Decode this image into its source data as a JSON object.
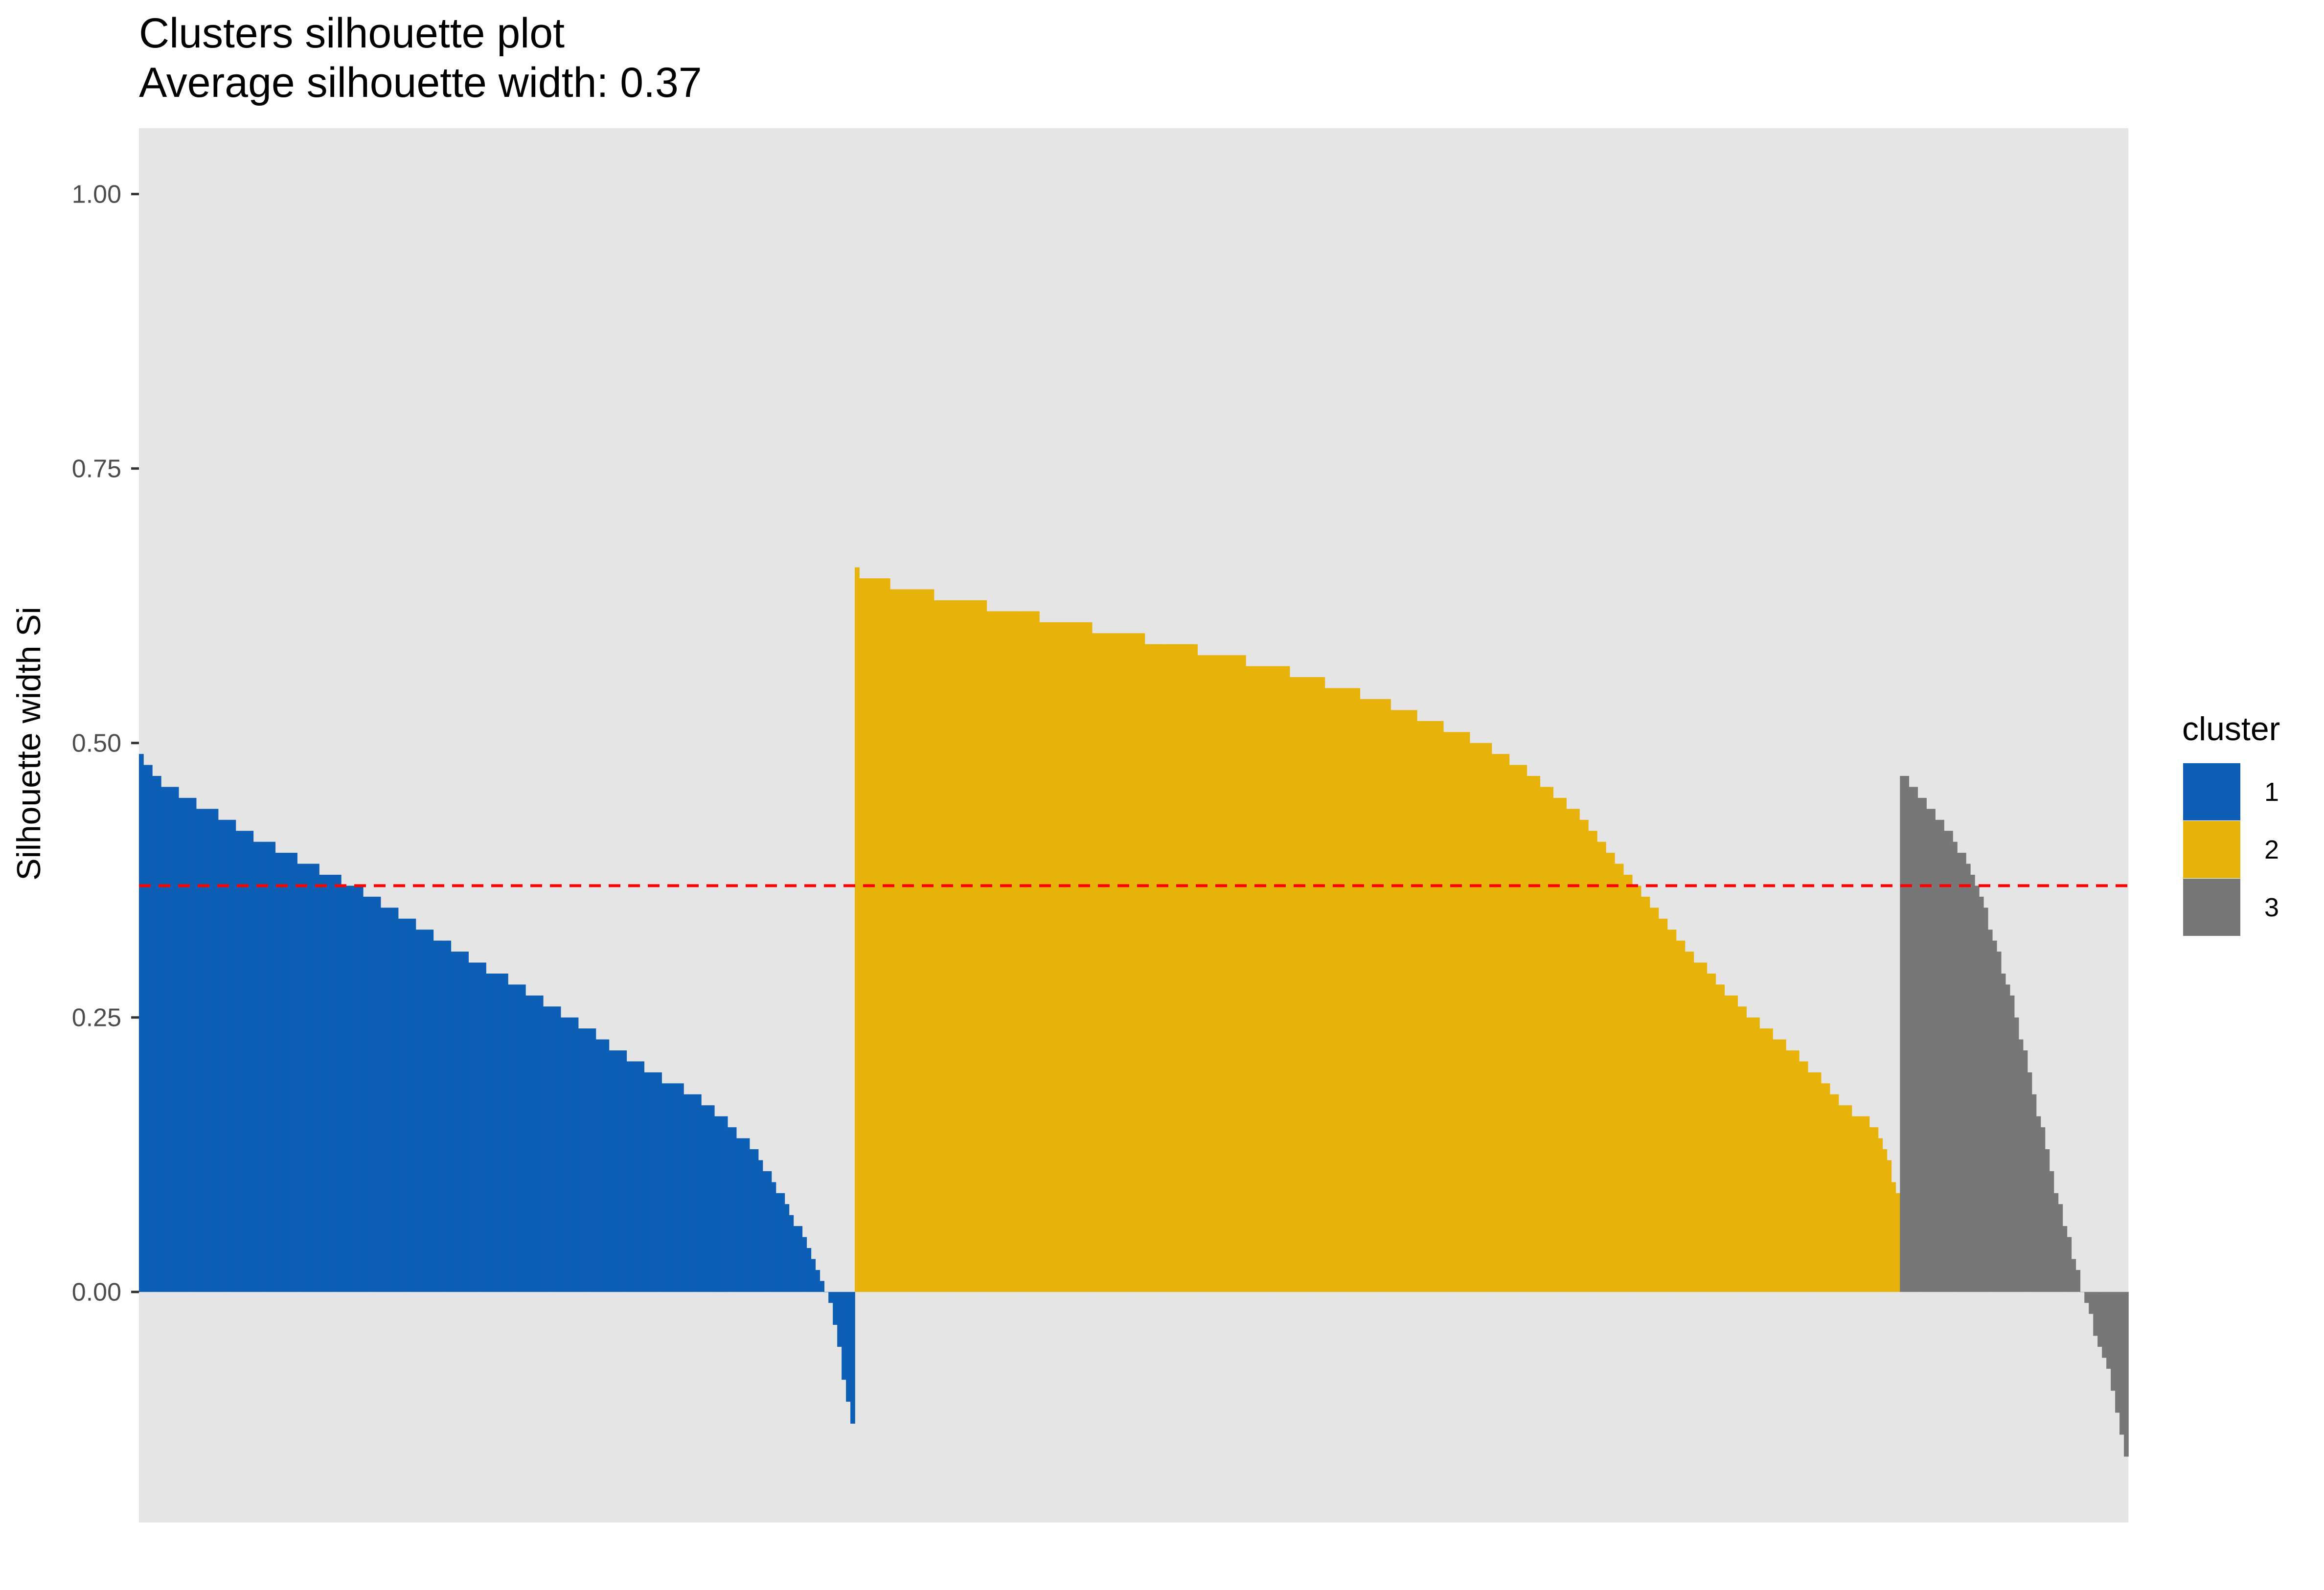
{
  "chart_data": {
    "type": "bar",
    "title": "Clusters silhouette plot",
    "subtitle": " Average silhouette width: 0.37",
    "xlabel": "",
    "ylabel": "Silhouette width Si",
    "ylim": [
      -0.21,
      1.06
    ],
    "yticks": [
      "0.00",
      "0.25",
      "0.50",
      "0.75",
      "1.00"
    ],
    "ytick_values": [
      0,
      0.25,
      0.5,
      0.75,
      1.0
    ],
    "grid": false,
    "background": "#e5e5e5",
    "average_line": {
      "value": 0.37,
      "color": "#ff0000",
      "style": "dashed"
    },
    "legend": {
      "title": "cluster",
      "position": "right"
    },
    "series": [
      {
        "name": "1",
        "color": "#0d5fb6",
        "count": 163,
        "profile": [
          [
            0,
            0.49
          ],
          [
            0.02,
            0.47
          ],
          [
            0.06,
            0.45
          ],
          [
            0.12,
            0.43
          ],
          [
            0.2,
            0.4
          ],
          [
            0.3,
            0.37
          ],
          [
            0.45,
            0.31
          ],
          [
            0.6,
            0.25
          ],
          [
            0.72,
            0.2
          ],
          [
            0.8,
            0.17
          ],
          [
            0.86,
            0.13
          ],
          [
            0.9,
            0.09
          ],
          [
            0.93,
            0.05
          ],
          [
            0.95,
            0.02
          ],
          [
            0.965,
            0.0
          ],
          [
            0.98,
            -0.04
          ],
          [
            0.993,
            -0.1
          ],
          [
            1.0,
            -0.12
          ]
        ]
      },
      {
        "name": "2",
        "color": "#e7b30b",
        "count": 238,
        "profile": [
          [
            0,
            0.655
          ],
          [
            0.05,
            0.64
          ],
          [
            0.15,
            0.62
          ],
          [
            0.3,
            0.59
          ],
          [
            0.4,
            0.57
          ],
          [
            0.5,
            0.54
          ],
          [
            0.6,
            0.5
          ],
          [
            0.65,
            0.47
          ],
          [
            0.7,
            0.43
          ],
          [
            0.75,
            0.37
          ],
          [
            0.8,
            0.31
          ],
          [
            0.85,
            0.26
          ],
          [
            0.9,
            0.22
          ],
          [
            0.95,
            0.17
          ],
          [
            0.98,
            0.15
          ],
          [
            0.99,
            0.12
          ],
          [
            1.0,
            0.09
          ]
        ]
      },
      {
        "name": "3",
        "color": "#777777",
        "count": 52,
        "profile": [
          [
            0,
            0.47
          ],
          [
            0.05,
            0.46
          ],
          [
            0.12,
            0.44
          ],
          [
            0.2,
            0.42
          ],
          [
            0.3,
            0.39
          ],
          [
            0.4,
            0.33
          ],
          [
            0.5,
            0.26
          ],
          [
            0.6,
            0.17
          ],
          [
            0.7,
            0.08
          ],
          [
            0.78,
            0.02
          ],
          [
            0.8,
            0.0
          ],
          [
            0.87,
            -0.04
          ],
          [
            0.93,
            -0.08
          ],
          [
            0.97,
            -0.12
          ],
          [
            1.0,
            -0.155
          ]
        ]
      }
    ]
  }
}
